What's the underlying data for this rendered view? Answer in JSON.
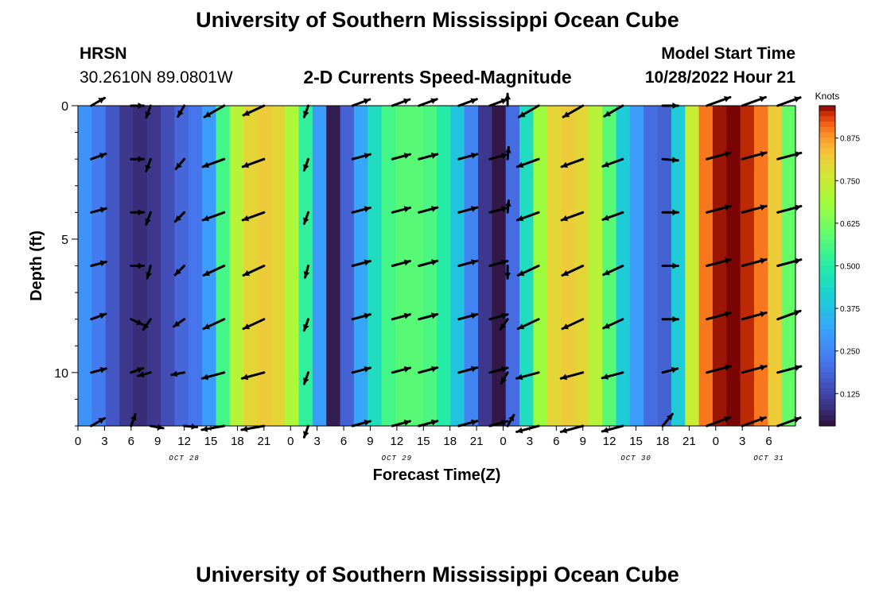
{
  "header": {
    "title": "University of Southern Mississippi Ocean Cube",
    "station": "HRSN",
    "coords": "30.2610N  89.0801W",
    "subtitle": "2-D Currents Speed-Magnitude",
    "model_label": "Model Start Time",
    "model_time": "10/28/2022 Hour 21"
  },
  "footer": {
    "title": "University of Southern Mississippi Ocean Cube"
  },
  "chart_data": {
    "type": "heatmap",
    "title": "2-D Currents Speed-Magnitude",
    "xlabel": "Forecast Time(Z)",
    "ylabel": "Depth (ft)",
    "x_range_hours": [
      0,
      81
    ],
    "ylim": [
      12,
      0
    ],
    "x_ticks": [
      "0",
      "3",
      "6",
      "9",
      "12",
      "15",
      "18",
      "21",
      "0",
      "3",
      "6",
      "9",
      "12",
      "15",
      "18",
      "21",
      "0",
      "3",
      "6",
      "9",
      "12",
      "15",
      "18",
      "21",
      "0",
      "3",
      "6"
    ],
    "date_labels": [
      {
        "label": "OCT 28",
        "hour": 12
      },
      {
        "label": "OCT 29",
        "hour": 36
      },
      {
        "label": "OCT 30",
        "hour": 63
      },
      {
        "label": "OCT 31",
        "hour": 78
      }
    ],
    "y_ticks": [
      "0",
      "5",
      "10"
    ],
    "colorbar": {
      "label": "Knots",
      "range": [
        0.03,
        0.97
      ],
      "ticks": [
        "0.125",
        "0.250",
        "0.375",
        "0.500",
        "0.625",
        "0.750",
        "0.875"
      ]
    },
    "speed_by_column_knots": [
      0.28,
      0.23,
      0.16,
      0.1,
      0.08,
      0.1,
      0.14,
      0.19,
      0.22,
      0.3,
      0.55,
      0.72,
      0.8,
      0.82,
      0.8,
      0.7,
      0.52,
      0.3,
      0.05,
      0.18,
      0.32,
      0.45,
      0.55,
      0.58,
      0.58,
      0.56,
      0.5,
      0.38,
      0.25,
      0.1,
      0.04,
      0.2,
      0.45,
      0.68,
      0.8,
      0.82,
      0.8,
      0.72,
      0.58,
      0.4,
      0.3,
      0.2,
      0.18,
      0.4,
      0.75,
      0.9,
      0.96,
      0.97,
      0.95,
      0.9,
      0.82,
      0.6
    ],
    "vectors": {
      "depths_ft": [
        0,
        2,
        4,
        6,
        8,
        10,
        12
      ],
      "hours": [
        1.5,
        6.0,
        8.2,
        12.0,
        16.5,
        21.0,
        26.0,
        31.0,
        35.5,
        38.5,
        43.0,
        46.5,
        48.5,
        52.0,
        57.0,
        61.5,
        66.0,
        71.0,
        75.0,
        79.0
      ],
      "directions_deg_to": [
        [
          60,
          90,
          200,
          210,
          240,
          245,
          200,
          70,
          70,
          70,
          70,
          70,
          0,
          240,
          240,
          240,
          90,
          70,
          70,
          70
        ],
        [
          70,
          90,
          200,
          220,
          250,
          250,
          200,
          75,
          75,
          75,
          75,
          75,
          5,
          250,
          250,
          250,
          95,
          75,
          75,
          75
        ],
        [
          75,
          90,
          200,
          225,
          250,
          250,
          200,
          75,
          75,
          75,
          75,
          75,
          5,
          250,
          250,
          250,
          90,
          75,
          75,
          75
        ],
        [
          75,
          90,
          195,
          225,
          245,
          245,
          195,
          75,
          75,
          75,
          75,
          75,
          180,
          245,
          245,
          245,
          90,
          75,
          75,
          75
        ],
        [
          70,
          115,
          215,
          235,
          245,
          245,
          200,
          75,
          75,
          75,
          75,
          75,
          215,
          245,
          245,
          245,
          90,
          75,
          75,
          70
        ],
        [
          75,
          70,
          255,
          260,
          255,
          255,
          200,
          75,
          75,
          75,
          75,
          75,
          210,
          255,
          255,
          255,
          75,
          75,
          75,
          75
        ],
        [
          60,
          20,
          100,
          95,
          260,
          260,
          200,
          75,
          75,
          75,
          75,
          75,
          30,
          255,
          255,
          255,
          40,
          70,
          70,
          70
        ]
      ],
      "speeds_knots": [
        [
          0.3,
          0.1,
          0.1,
          0.1,
          0.8,
          0.8,
          0.06,
          0.5,
          0.5,
          0.55,
          0.55,
          0.5,
          0.05,
          0.8,
          0.8,
          0.7,
          0.3,
          0.95,
          0.95,
          0.9
        ],
        [
          0.3,
          0.1,
          0.12,
          0.12,
          0.8,
          0.8,
          0.06,
          0.5,
          0.5,
          0.55,
          0.55,
          0.5,
          0.05,
          0.8,
          0.8,
          0.7,
          0.3,
          0.95,
          0.95,
          0.9
        ],
        [
          0.3,
          0.1,
          0.12,
          0.12,
          0.8,
          0.8,
          0.06,
          0.5,
          0.5,
          0.55,
          0.55,
          0.5,
          0.05,
          0.8,
          0.8,
          0.7,
          0.3,
          0.95,
          0.95,
          0.9
        ],
        [
          0.3,
          0.1,
          0.12,
          0.12,
          0.8,
          0.8,
          0.06,
          0.5,
          0.5,
          0.55,
          0.55,
          0.5,
          0.1,
          0.8,
          0.8,
          0.7,
          0.3,
          0.95,
          0.95,
          0.9
        ],
        [
          0.3,
          0.1,
          0.12,
          0.12,
          0.8,
          0.8,
          0.06,
          0.5,
          0.5,
          0.55,
          0.55,
          0.5,
          0.1,
          0.8,
          0.8,
          0.7,
          0.3,
          0.95,
          0.95,
          0.9
        ],
        [
          0.3,
          0.1,
          0.12,
          0.12,
          0.8,
          0.8,
          0.06,
          0.5,
          0.5,
          0.55,
          0.55,
          0.5,
          0.1,
          0.8,
          0.8,
          0.7,
          0.3,
          0.95,
          0.95,
          0.9
        ],
        [
          0.3,
          0.1,
          0.12,
          0.12,
          0.8,
          0.8,
          0.06,
          0.5,
          0.5,
          0.55,
          0.55,
          0.5,
          0.1,
          0.8,
          0.8,
          0.7,
          0.3,
          0.95,
          0.95,
          0.9
        ]
      ]
    }
  }
}
